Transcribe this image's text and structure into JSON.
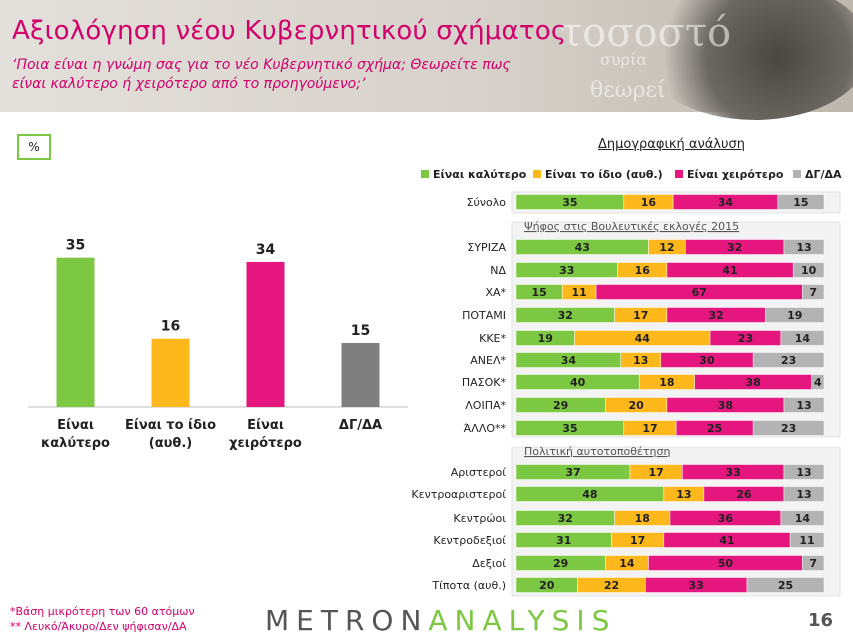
{
  "header": {
    "title": "Αξιολόγηση νέου Κυβερνητικού σχήματος",
    "subtitle_line1": "‘Ποια είναι η γνώμη σας για το νέο Κυβερνητικό σχήμα; Θεωρείτε πως",
    "subtitle_line2": "είναι καλύτερο ή χειρότερο από το προηγούμενο;’"
  },
  "unit_box": "%",
  "demographics_title": "Δημογραφική ανάλυση",
  "footnotes": {
    "line1": "*Βάση μικρότερη των 60 ατόμων",
    "line2": "** Λευκό/Άκυρο/Δεν ψήφισαν/ΔΑ"
  },
  "brand": {
    "part1": "METRON",
    "part2": "ANALYSIS"
  },
  "page_number": "16",
  "colors": {
    "better": "#7dc843",
    "same": "#ffb81c",
    "worse": "#e5177f",
    "dk": "#999999",
    "accent": "#d1006b"
  },
  "chart_data": [
    {
      "type": "bar",
      "categories": [
        [
          "Είναι",
          "καλύτερο"
        ],
        [
          "Είναι το ίδιο",
          "(αυθ.)"
        ],
        [
          "Είναι",
          "χειρότερο"
        ],
        [
          "ΔΓ/ΔΑ"
        ]
      ],
      "values": [
        35,
        16,
        34,
        15
      ],
      "colors": [
        "#7dc843",
        "#ffb81c",
        "#e5177f",
        "#7f7f7f"
      ],
      "ylim": [
        0,
        45
      ]
    },
    {
      "type": "bar",
      "orientation": "horizontal",
      "stacked": true,
      "legend_position": "top",
      "series": [
        {
          "name": "Είναι καλύτερο",
          "color": "#7dc843"
        },
        {
          "name": "Είναι το ίδιο (αυθ.)",
          "color": "#ffb81c"
        },
        {
          "name": "Είναι χειρότερο",
          "color": "#e5177f"
        },
        {
          "name": "ΔΓ/ΔΑ",
          "color": "#b3b3b3"
        }
      ],
      "groups": [
        {
          "heading": "",
          "rows": [
            {
              "label": "Σύνολο",
              "values": [
                35,
                16,
                34,
                15
              ]
            }
          ]
        },
        {
          "heading": "Ψήφος στις Βουλευτικές εκλογές 2015",
          "rows": [
            {
              "label": "ΣΥΡΙΖΑ",
              "values": [
                43,
                12,
                32,
                13
              ]
            },
            {
              "label": "ΝΔ",
              "values": [
                33,
                16,
                41,
                10
              ]
            },
            {
              "label": "ΧΑ*",
              "values": [
                15,
                11,
                67,
                7
              ]
            },
            {
              "label": "ΠΟΤΑΜΙ",
              "values": [
                32,
                17,
                32,
                19
              ]
            },
            {
              "label": "ΚΚΕ*",
              "values": [
                19,
                44,
                23,
                14
              ]
            },
            {
              "label": "ΑΝΕΛ*",
              "values": [
                34,
                13,
                30,
                23
              ]
            },
            {
              "label": "ΠΑΣΟΚ*",
              "values": [
                40,
                18,
                38,
                4
              ]
            },
            {
              "label": "ΛΟΙΠΑ*",
              "values": [
                29,
                20,
                38,
                13
              ]
            },
            {
              "label": "ΆΛΛΟ**",
              "values": [
                35,
                17,
                25,
                23
              ]
            }
          ]
        },
        {
          "heading": "Πολιτική αυτοτοποθέτηση",
          "rows": [
            {
              "label": "Αριστεροί",
              "values": [
                37,
                17,
                33,
                13
              ]
            },
            {
              "label": "Κεντροαριστεροί",
              "values": [
                48,
                13,
                26,
                13
              ]
            },
            {
              "label": "Κεντρώοι",
              "values": [
                32,
                18,
                36,
                14
              ]
            },
            {
              "label": "Κεντροδεξιοί",
              "values": [
                31,
                17,
                41,
                11
              ]
            },
            {
              "label": "Δεξιοί",
              "values": [
                29,
                14,
                50,
                7
              ]
            },
            {
              "label": "Τίποτα (αυθ.)",
              "values": [
                20,
                22,
                33,
                25
              ]
            }
          ]
        }
      ]
    }
  ]
}
